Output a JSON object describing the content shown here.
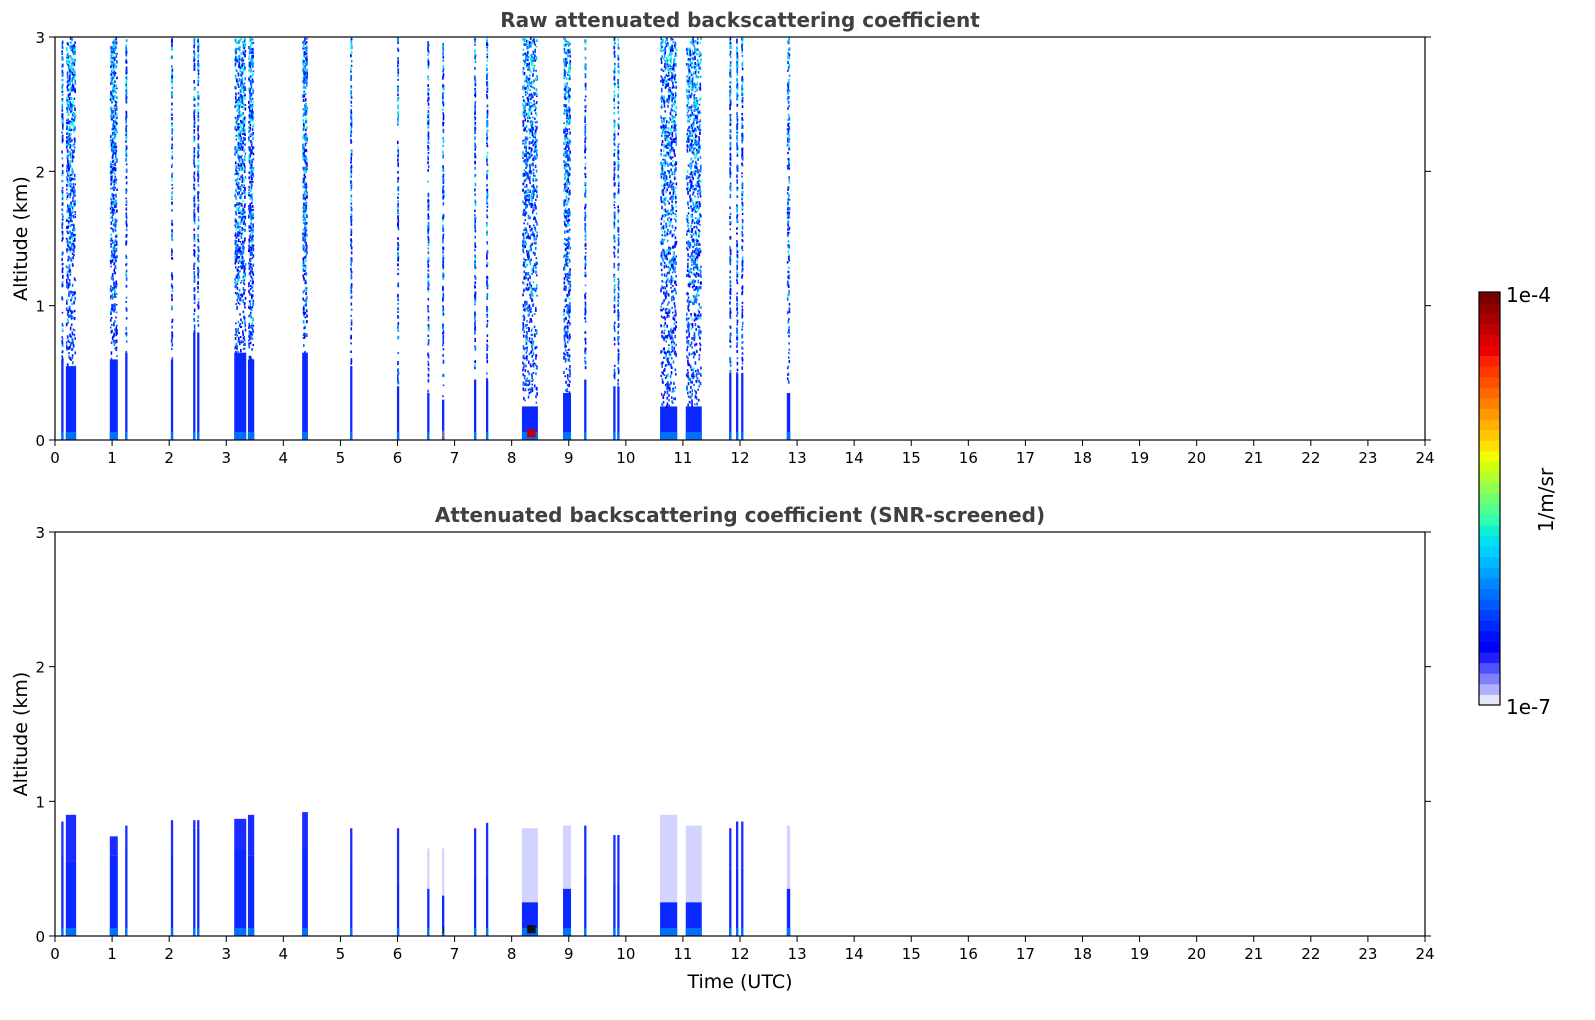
{
  "chart_data": [
    {
      "type": "heatmap",
      "title": "Raw attenuated backscattering coefficient",
      "xlabel": "",
      "ylabel": "Altitude (km)",
      "xlim": [
        0,
        24
      ],
      "ylim": [
        0,
        3
      ],
      "xticks": [
        "0",
        "1",
        "2",
        "3",
        "4",
        "5",
        "6",
        "7",
        "8",
        "9",
        "10",
        "11",
        "12",
        "13",
        "14",
        "15",
        "16",
        "17",
        "18",
        "19",
        "20",
        "21",
        "22",
        "23",
        "24"
      ],
      "yticks": [
        "0",
        "1",
        "2",
        "3"
      ],
      "mode": "raw"
    },
    {
      "type": "heatmap",
      "title": "Attenuated backscattering coefficient (SNR-screened)",
      "xlabel": "Time (UTC)",
      "ylabel": "Altitude (km)",
      "xlim": [
        0,
        24
      ],
      "ylim": [
        0,
        3
      ],
      "xticks": [
        "0",
        "1",
        "2",
        "3",
        "4",
        "5",
        "6",
        "7",
        "8",
        "9",
        "10",
        "11",
        "12",
        "13",
        "14",
        "15",
        "16",
        "17",
        "18",
        "19",
        "20",
        "21",
        "22",
        "23",
        "24"
      ],
      "yticks": [
        "0",
        "1",
        "2",
        "3"
      ],
      "mode": "snr"
    }
  ],
  "profiles": [
    {
      "t0": 0.11,
      "t1": 0.15,
      "dense_km": 0.6,
      "snr_top_km": 0.85,
      "noise": 0.6
    },
    {
      "t0": 0.19,
      "t1": 0.37,
      "dense_km": 0.55,
      "snr_top_km": 0.9,
      "noise": 1
    },
    {
      "t0": 0.96,
      "t1": 1.1,
      "dense_km": 0.6,
      "snr_top_km": 0.74,
      "noise": 1
    },
    {
      "t0": 1.23,
      "t1": 1.27,
      "dense_km": 0.65,
      "snr_top_km": 0.82,
      "noise": 0.6
    },
    {
      "t0": 2.03,
      "t1": 2.07,
      "dense_km": 0.6,
      "snr_top_km": 0.86,
      "noise": 0.5
    },
    {
      "t0": 2.42,
      "t1": 2.46,
      "dense_km": 0.8,
      "snr_top_km": 0.86,
      "noise": 0.6
    },
    {
      "t0": 2.49,
      "t1": 2.53,
      "dense_km": 0.8,
      "snr_top_km": 0.86,
      "noise": 0.6
    },
    {
      "t0": 3.14,
      "t1": 3.35,
      "dense_km": 0.65,
      "snr_top_km": 0.87,
      "noise": 1
    },
    {
      "t0": 3.38,
      "t1": 3.49,
      "dense_km": 0.6,
      "snr_top_km": 0.9,
      "noise": 1
    },
    {
      "t0": 4.33,
      "t1": 4.43,
      "dense_km": 0.65,
      "snr_top_km": 0.92,
      "noise": 1
    },
    {
      "t0": 5.17,
      "t1": 5.21,
      "dense_km": 0.55,
      "snr_top_km": 0.8,
      "noise": 0.6
    },
    {
      "t0": 5.99,
      "t1": 6.03,
      "dense_km": 0.4,
      "snr_top_km": 0.8,
      "noise": 0.6
    },
    {
      "t0": 6.52,
      "t1": 6.56,
      "dense_km": 0.35,
      "snr_top_km": 0.65,
      "noise": 0.7
    },
    {
      "t0": 6.78,
      "t1": 6.82,
      "dense_km": 0.3,
      "snr_top_km": 0.65,
      "noise": 0.7
    },
    {
      "t0": 7.34,
      "t1": 7.38,
      "dense_km": 0.45,
      "snr_top_km": 0.8,
      "noise": 0.6
    },
    {
      "t0": 7.55,
      "t1": 7.59,
      "dense_km": 0.45,
      "snr_top_km": 0.84,
      "noise": 0.6
    },
    {
      "t0": 8.18,
      "t1": 8.46,
      "dense_km": 0.25,
      "snr_top_km": 0.8,
      "noise": 1
    },
    {
      "t0": 8.9,
      "t1": 9.04,
      "dense_km": 0.35,
      "snr_top_km": 0.82,
      "noise": 1
    },
    {
      "t0": 9.27,
      "t1": 9.31,
      "dense_km": 0.45,
      "snr_top_km": 0.82,
      "noise": 0.6
    },
    {
      "t0": 9.78,
      "t1": 9.82,
      "dense_km": 0.4,
      "snr_top_km": 0.75,
      "noise": 0.6
    },
    {
      "t0": 9.85,
      "t1": 9.89,
      "dense_km": 0.4,
      "snr_top_km": 0.75,
      "noise": 0.6
    },
    {
      "t0": 10.6,
      "t1": 10.9,
      "dense_km": 0.25,
      "snr_top_km": 0.9,
      "noise": 1
    },
    {
      "t0": 11.05,
      "t1": 11.33,
      "dense_km": 0.25,
      "snr_top_km": 0.82,
      "noise": 1
    },
    {
      "t0": 11.81,
      "t1": 11.85,
      "dense_km": 0.5,
      "snr_top_km": 0.8,
      "noise": 0.7
    },
    {
      "t0": 11.93,
      "t1": 11.97,
      "dense_km": 0.5,
      "snr_top_km": 0.85,
      "noise": 0.7
    },
    {
      "t0": 12.02,
      "t1": 12.06,
      "dense_km": 0.5,
      "snr_top_km": 0.85,
      "noise": 0.7
    },
    {
      "t0": 12.82,
      "t1": 12.88,
      "dense_km": 0.35,
      "snr_top_km": 0.82,
      "noise": 0.6
    }
  ],
  "hotspots": [
    {
      "t0": 8.27,
      "t1": 8.42,
      "z0": 0.02,
      "z1": 0.08,
      "color": "#c00000"
    },
    {
      "t0": 6.79,
      "t1": 6.81,
      "z0": 0.02,
      "z1": 0.07,
      "color": "#ff6a00"
    }
  ],
  "colorbar": {
    "label": "1/m/sr",
    "max_label": "1e-4",
    "min_label": "1e-7",
    "colors": [
      "#e6e6fa",
      "#b0b0ff",
      "#8080ff",
      "#5050ff",
      "#2020ff",
      "#0000ff",
      "#0010ff",
      "#0028ff",
      "#0040ff",
      "#0058ff",
      "#0070ff",
      "#0088ff",
      "#00a0ff",
      "#00b8ff",
      "#00d0ff",
      "#00e0f0",
      "#10f0d0",
      "#30ffb0",
      "#50ff90",
      "#70ff70",
      "#90ff50",
      "#b0ff30",
      "#d0ff10",
      "#f0ff00",
      "#ffe000",
      "#ffc800",
      "#ffb000",
      "#ff9800",
      "#ff8000",
      "#ff6800",
      "#ff5000",
      "#ff3800",
      "#ff2000",
      "#f00000",
      "#d80000",
      "#c00000",
      "#a80000",
      "#900000",
      "#780000"
    ]
  }
}
